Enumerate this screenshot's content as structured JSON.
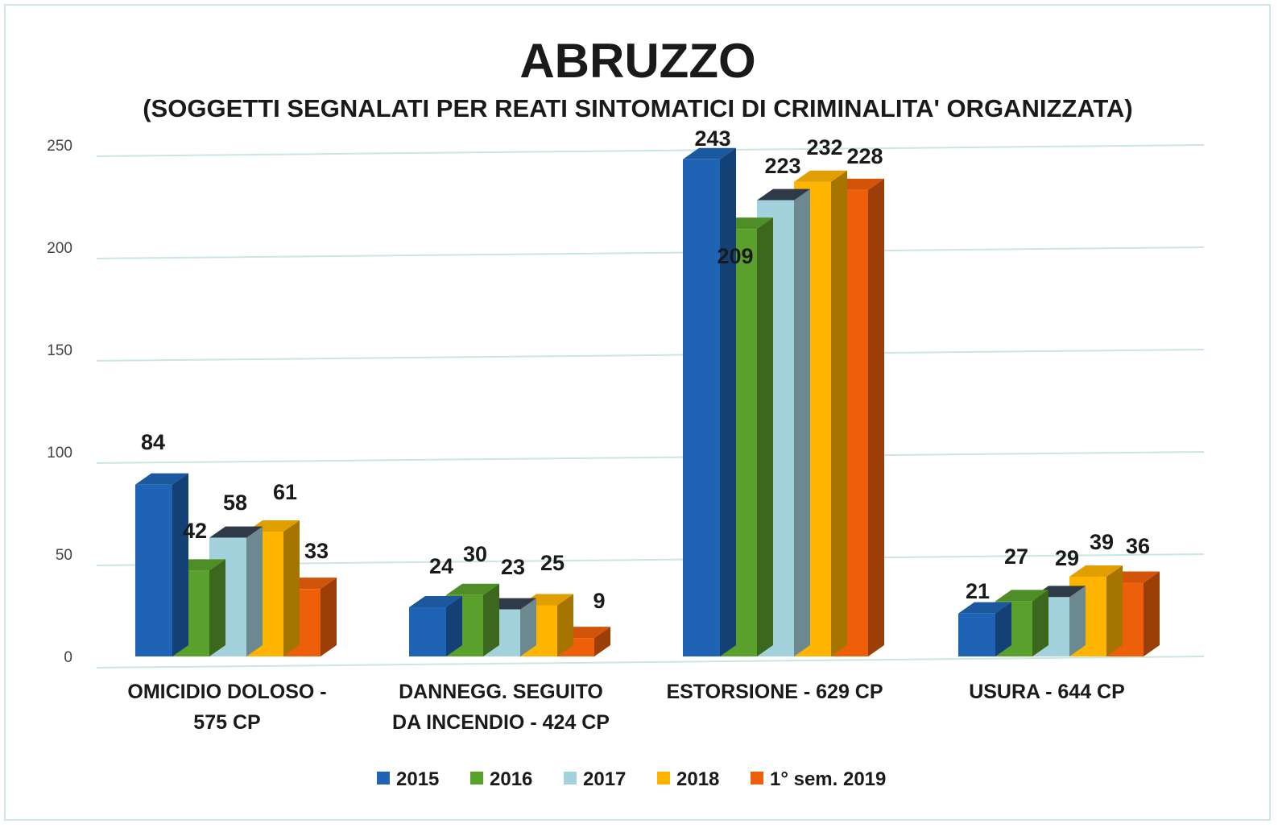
{
  "chart_data": {
    "type": "bar",
    "title": "ABRUZZO",
    "subtitle": "(SOGGETTI SEGNALATI PER REATI SINTOMATICI DI CRIMINALITA' ORGANIZZATA)",
    "xlabel": "",
    "ylabel": "",
    "ylim": [
      0,
      250
    ],
    "yticks": [
      0,
      50,
      100,
      150,
      200,
      250
    ],
    "grid": true,
    "legend_position": "bottom",
    "categories": [
      [
        "OMICIDIO DOLOSO -",
        "575 CP"
      ],
      [
        "DANNEGG. SEGUITO",
        "DA INCENDIO - 424 CP"
      ],
      [
        "ESTORSIONE - 629 CP"
      ],
      [
        "USURA - 644 CP"
      ]
    ],
    "series": [
      {
        "name": "2015",
        "color": "#1f64b4",
        "values": [
          84,
          24,
          243,
          21
        ]
      },
      {
        "name": "2016",
        "color": "#5aa02c",
        "values": [
          42,
          30,
          209,
          27
        ]
      },
      {
        "name": "2017",
        "color": "#a4d2dc",
        "values": [
          58,
          23,
          223,
          29
        ]
      },
      {
        "name": "2018",
        "color": "#ffb400",
        "values": [
          61,
          25,
          232,
          39
        ]
      },
      {
        "name": "1° sem. 2019",
        "color": "#ee5f0a",
        "values": [
          33,
          9,
          228,
          36
        ]
      }
    ]
  }
}
